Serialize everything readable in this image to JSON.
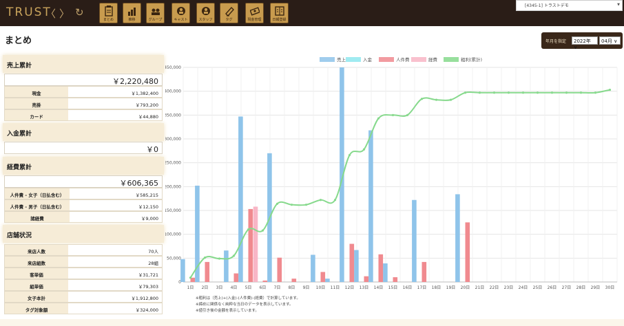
{
  "header": {
    "logo": "TRUST",
    "nav": {
      "back": "〈",
      "forward": "〉",
      "reload": "↻"
    },
    "buttons": [
      {
        "label": "まとめ",
        "icon": "clipboard-icon"
      },
      {
        "label": "推移",
        "icon": "bar-chart-icon"
      },
      {
        "label": "グループ",
        "icon": "group-icon"
      },
      {
        "label": "キャスト",
        "icon": "cast-person-icon"
      },
      {
        "label": "スタッフ",
        "icon": "staff-person-icon"
      },
      {
        "label": "タグ",
        "icon": "tag-icon"
      },
      {
        "label": "現金管理",
        "icon": "cash-icon"
      },
      {
        "label": "日報登録",
        "icon": "report-book-icon"
      }
    ],
    "store_select": "[4345-1] トラストデモ"
  },
  "page": {
    "title": "まとめ",
    "date_label": "年月を指定",
    "year": "2022年",
    "month": "04月"
  },
  "sales": {
    "title": "売上累計",
    "total": "￥2,220,480",
    "rows": [
      {
        "label": "現金",
        "value": "￥1,382,400"
      },
      {
        "label": "売掛",
        "value": "￥793,200"
      },
      {
        "label": "カード",
        "value": "￥44,880"
      }
    ]
  },
  "deposit": {
    "title": "入金累計",
    "total": "￥0"
  },
  "expense": {
    "title": "経費累計",
    "total": "￥606,365",
    "rows": [
      {
        "label": "人件費 - 女子（日払含む）",
        "value": "￥585,215"
      },
      {
        "label": "人件費 - 男子（日払含む）",
        "value": "￥12,150"
      },
      {
        "label": "諸経費",
        "value": "￥9,000"
      }
    ]
  },
  "store": {
    "title": "店舗状況",
    "rows": [
      {
        "label": "来店人数",
        "value": "70人"
      },
      {
        "label": "来店組数",
        "value": "28組"
      },
      {
        "label": "客単価",
        "value": "￥31,721"
      },
      {
        "label": "組単価",
        "value": "￥79,303"
      },
      {
        "label": "女子本計",
        "value": "￥1,912,800"
      },
      {
        "label": "タグ対象額",
        "value": "￥324,000"
      }
    ]
  },
  "chart_data": {
    "type": "bar",
    "categories": [
      "1日",
      "2日",
      "3日",
      "4日",
      "5日",
      "6日",
      "7日",
      "8日",
      "9日",
      "10日",
      "11日",
      "12日",
      "13日",
      "14日",
      "15日",
      "16日",
      "17日",
      "18日",
      "19日",
      "20日",
      "21日",
      "22日",
      "23日",
      "24日",
      "25日",
      "26日",
      "27日",
      "28日",
      "29日",
      "30日"
    ],
    "ylim": [
      0,
      450000
    ],
    "yticks": [
      "0",
      "50,000",
      "100,000",
      "150,000",
      "200,000",
      "250,000",
      "300,000",
      "350,000",
      "400,000",
      "450,000"
    ],
    "legend_position": "top",
    "grid": true,
    "series": [
      {
        "name": "売上",
        "color": "#8fc4ea",
        "values": [
          48000,
          202000,
          0,
          66000,
          347000,
          0,
          270000,
          0,
          0,
          57000,
          7000,
          450000,
          67000,
          318000,
          39000,
          0,
          172000,
          0,
          0,
          184000,
          0,
          0,
          0,
          0,
          0,
          0,
          0,
          0,
          0,
          0
        ]
      },
      {
        "name": "入金",
        "color": "#8fe7ee",
        "values": [
          0,
          0,
          0,
          0,
          0,
          0,
          0,
          0,
          0,
          0,
          0,
          0,
          0,
          0,
          0,
          0,
          0,
          0,
          0,
          0,
          0,
          0,
          0,
          0,
          0,
          0,
          0,
          0,
          0,
          0
        ]
      },
      {
        "name": "人件費",
        "color": "#f08a8f",
        "values": [
          9000,
          42000,
          0,
          18000,
          153000,
          3000,
          51000,
          7000,
          0,
          21000,
          0,
          80000,
          12000,
          58000,
          10000,
          0,
          42000,
          0,
          0,
          125000,
          0,
          0,
          0,
          0,
          0,
          0,
          0,
          0,
          0,
          0
        ]
      },
      {
        "name": "経費",
        "color": "#f8b6c6",
        "values": [
          0,
          0,
          0,
          0,
          158000,
          0,
          0,
          0,
          0,
          0,
          0,
          0,
          0,
          0,
          0,
          0,
          0,
          0,
          0,
          0,
          0,
          0,
          0,
          0,
          0,
          0,
          0,
          0,
          0,
          0
        ]
      },
      {
        "name": "粗利(累計)",
        "color": "#86d98c",
        "type": "line",
        "values": [
          9000,
          51000,
          49000,
          55000,
          110000,
          108000,
          164000,
          162000,
          162000,
          172000,
          172000,
          266000,
          278000,
          343000,
          350000,
          350000,
          384000,
          382000,
          382000,
          397000,
          397000,
          397000,
          397000,
          397000,
          397000,
          397000,
          397000,
          397000,
          397000,
          403000
        ]
      }
    ],
    "notes": [
      "※粗利は（売上)+(入金)-(人件費)-(経費）で計算しています。",
      "※締めに関係なく純粋な当日のデータを表示しています。",
      "※値引き後の金額を表示しています。"
    ]
  }
}
